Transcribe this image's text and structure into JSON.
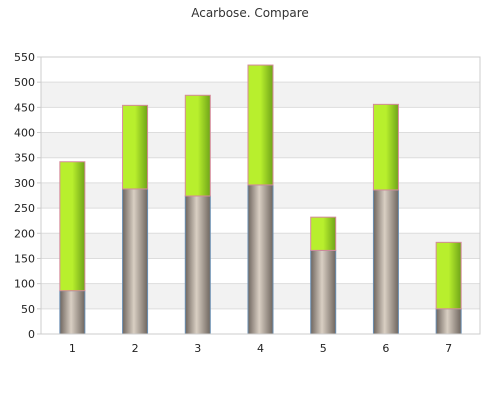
{
  "chart_data": {
    "type": "bar",
    "stacked": true,
    "title": "Acarbose. Compare",
    "xlabel": "",
    "ylabel": "",
    "categories": [
      "1",
      "2",
      "3",
      "4",
      "5",
      "6",
      "7"
    ],
    "series": [
      {
        "values": [
          86,
          288,
          274,
          296,
          166,
          286,
          50
        ]
      },
      {
        "values": [
          256,
          166,
          200,
          238,
          66,
          170,
          132
        ]
      }
    ],
    "ylim": [
      0,
      550
    ],
    "yticks": [
      0,
      50,
      100,
      150,
      200,
      250,
      300,
      350,
      400,
      450,
      500,
      550
    ],
    "grid": true,
    "legend": "none",
    "colors": {
      "bottom_dark": "#6f665f",
      "bottom_light": "#d9cfc3",
      "bottom_stroke": "#6b8fb2",
      "top_dark": "#6fa418",
      "top_light": "#b8ef2d",
      "top_stroke": "#d58a9a",
      "band": "#f2f2f2",
      "grid": "#dddddd",
      "axis": "#cccccc"
    }
  }
}
